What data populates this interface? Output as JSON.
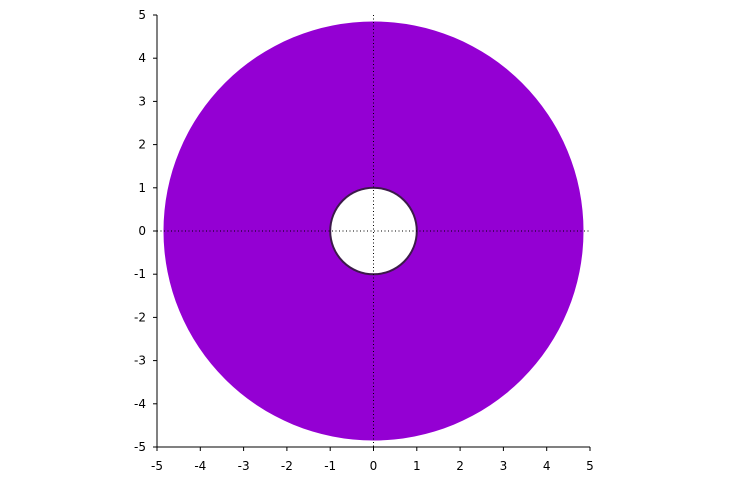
{
  "chart_data": {
    "type": "area",
    "xlim": [
      -5,
      5
    ],
    "ylim": [
      -5,
      5
    ],
    "xticks": [
      "-5",
      "-4",
      "-3",
      "-2",
      "-1",
      "0",
      "1",
      "2",
      "3",
      "4",
      "5"
    ],
    "yticks": [
      "5",
      "4",
      "3",
      "2",
      "1",
      "0",
      "-1",
      "-2",
      "-3",
      "-4",
      "-5"
    ],
    "zero_lines": "dotted",
    "grid": false,
    "shapes": [
      {
        "kind": "annulus",
        "center": [
          0,
          0
        ],
        "inner_radius": 1,
        "outer_radius": 4.85,
        "fill_color": "#9400d3",
        "inner_edge_color": "#3c1a4a"
      }
    ]
  }
}
